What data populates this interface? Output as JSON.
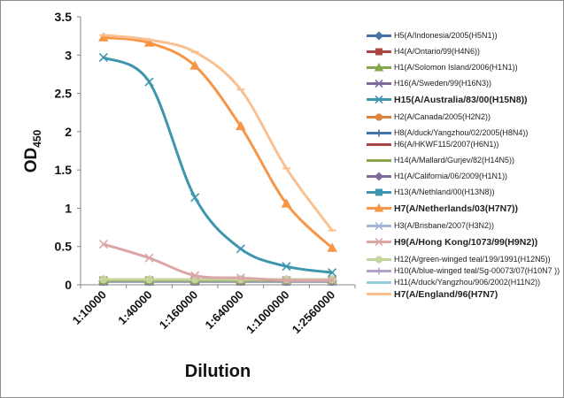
{
  "chart_data": {
    "type": "line",
    "title": "",
    "xlabel": "Dilution",
    "ylabel": "OD",
    "ylabel_sub": "450",
    "categories": [
      "1:10000",
      "1:40000",
      "1:160000",
      "1:640000",
      "1:1000000",
      "1:2560000"
    ],
    "ylim": [
      0,
      3.5
    ],
    "yticks": [
      "0",
      "0.5",
      "1",
      "1.5",
      "2",
      "2.5",
      "3",
      "3.5"
    ],
    "grid": false,
    "legend_position": "right",
    "series": [
      {
        "name": "H5(A/Indonesia/2005(H5N1))",
        "color": "#4572a7",
        "marker": "diamond",
        "bold": false,
        "values": [
          0.05,
          0.05,
          0.05,
          0.05,
          0.05,
          0.05
        ]
      },
      {
        "name": "H4(A/Ontario/99(H4N6))",
        "color": "#aa4643",
        "marker": "square",
        "bold": false,
        "values": [
          0.06,
          0.06,
          0.06,
          0.06,
          0.06,
          0.06
        ]
      },
      {
        "name": "H1(A/Solomon Island/2006(H1N1))",
        "color": "#89a54e",
        "marker": "triangle",
        "bold": false,
        "values": [
          0.06,
          0.06,
          0.06,
          0.06,
          0.06,
          0.06
        ]
      },
      {
        "name": "H16(A/Sweden/99(H16N3))",
        "color": "#80699b",
        "marker": "x",
        "bold": false,
        "values": [
          0.05,
          0.05,
          0.05,
          0.05,
          0.05,
          0.05
        ]
      },
      {
        "name": "H15(A/Australia/83/00(H15N8))",
        "color": "#3d96ae",
        "marker": "x",
        "bold": true,
        "values": [
          2.97,
          2.65,
          1.14,
          0.47,
          0.24,
          0.16
        ]
      },
      {
        "name": "H2(A/Canada/2005(H2N2))",
        "color": "#db843d",
        "marker": "circle",
        "bold": false,
        "values": [
          0.05,
          0.05,
          0.05,
          0.05,
          0.05,
          0.05
        ]
      },
      {
        "name": "H8(A/duck/Yangzhou/02/2005(H8N4))",
        "color": "#4572a7",
        "marker": "plus",
        "bold": false,
        "values": [
          0.04,
          0.04,
          0.04,
          0.04,
          0.04,
          0.04
        ]
      },
      {
        "name": "H6(A/HKWF115/2007(H6N1))",
        "color": "#aa4643",
        "marker": "dash",
        "bold": false,
        "values": [
          0.05,
          0.05,
          0.05,
          0.05,
          0.05,
          0.05
        ]
      },
      {
        "name": "H14(A/Mallard/Gurjev/82(H14N5))",
        "color": "#89a54e",
        "marker": "dash",
        "bold": false,
        "values": [
          0.06,
          0.06,
          0.06,
          0.06,
          0.06,
          0.06
        ]
      },
      {
        "name": "H1(A/California/06/2009(H1N1))",
        "color": "#80699b",
        "marker": "diamond",
        "bold": false,
        "values": [
          0.05,
          0.05,
          0.05,
          0.05,
          0.05,
          0.05
        ]
      },
      {
        "name": "H13(A/Nethland/00(H13N8))",
        "color": "#3d96ae",
        "marker": "square",
        "bold": false,
        "values": [
          0.04,
          0.04,
          0.04,
          0.04,
          0.04,
          0.04
        ]
      },
      {
        "name": "H7(A/Netherlands/03(H7N7))",
        "color": "#f79646",
        "marker": "triangle",
        "bold": true,
        "values": [
          3.23,
          3.16,
          2.86,
          2.07,
          1.06,
          0.48
        ]
      },
      {
        "name": "H3(A/Brisbane/2007(H3N2))",
        "color": "#a5b6d5",
        "marker": "x",
        "bold": false,
        "values": [
          0.04,
          0.04,
          0.04,
          0.04,
          0.04,
          0.04
        ]
      },
      {
        "name": "H9(A/Hong Kong/1073/99(H9N2))",
        "color": "#dba7a6",
        "marker": "x",
        "bold": true,
        "values": [
          0.53,
          0.35,
          0.12,
          0.09,
          0.06,
          0.06
        ]
      },
      {
        "name": "H12(A/green-winged teal/199/1991(H12N5))",
        "color": "#c3d69b",
        "marker": "circle",
        "bold": false,
        "values": [
          0.07,
          0.07,
          0.07,
          0.07,
          0.07,
          0.07
        ]
      },
      {
        "name": "H10(A/blue-winged teal/Sg-00073/07(H10N7 ))",
        "color": "#b3a2c7",
        "marker": "plus",
        "bold": false,
        "values": [
          0.05,
          0.05,
          0.05,
          0.05,
          0.05,
          0.05
        ]
      },
      {
        "name": "H11(A/duck/Yangzhou/906/2002(H11N2))",
        "color": "#93cddd",
        "marker": "dash",
        "bold": false,
        "values": [
          0.04,
          0.04,
          0.04,
          0.04,
          0.04,
          0.04
        ]
      },
      {
        "name": "H7(A/England/96(H7N7)",
        "color": "#fac090",
        "marker": "dash",
        "bold": true,
        "values": [
          3.26,
          3.2,
          3.04,
          2.55,
          1.52,
          0.71
        ]
      }
    ]
  }
}
